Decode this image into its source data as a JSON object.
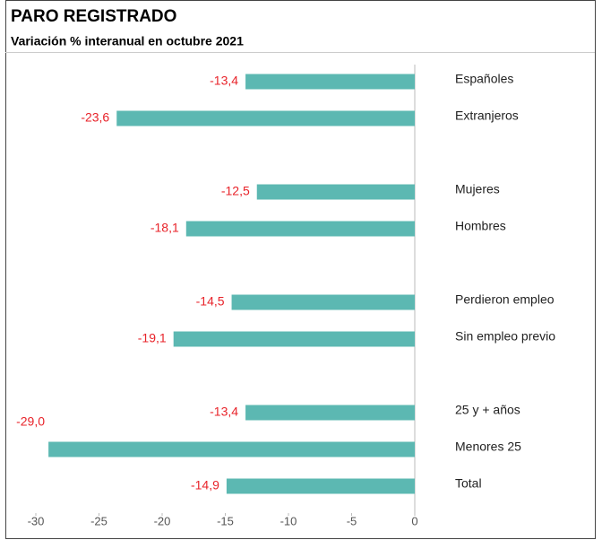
{
  "chart_data": {
    "type": "bar",
    "orientation": "horizontal",
    "title": "PARO REGISTRADO",
    "subtitle": "Variación % interanual en octubre 2021",
    "categories": [
      "Españoles",
      "Extranjeros",
      "Mujeres",
      "Hombres",
      "Perdieron empleo",
      "Sin empleo previo",
      "25 y + años",
      "Menores 25",
      "Total"
    ],
    "values": [
      -13.4,
      -23.6,
      -12.5,
      -18.1,
      -14.5,
      -19.1,
      -13.4,
      -29.0,
      -14.9
    ],
    "value_labels": [
      "-13,4",
      "-23,6",
      "-12,5",
      "-18,1",
      "-14,5",
      "-19,1",
      "-13,4",
      "-29,0",
      "-14,9"
    ],
    "color": "#5cb8b2",
    "value_label_color": "#e8232a",
    "xlim": [
      -30,
      0
    ],
    "xticks": [
      -30,
      -25,
      -20,
      -15,
      -10,
      -5,
      0
    ]
  }
}
